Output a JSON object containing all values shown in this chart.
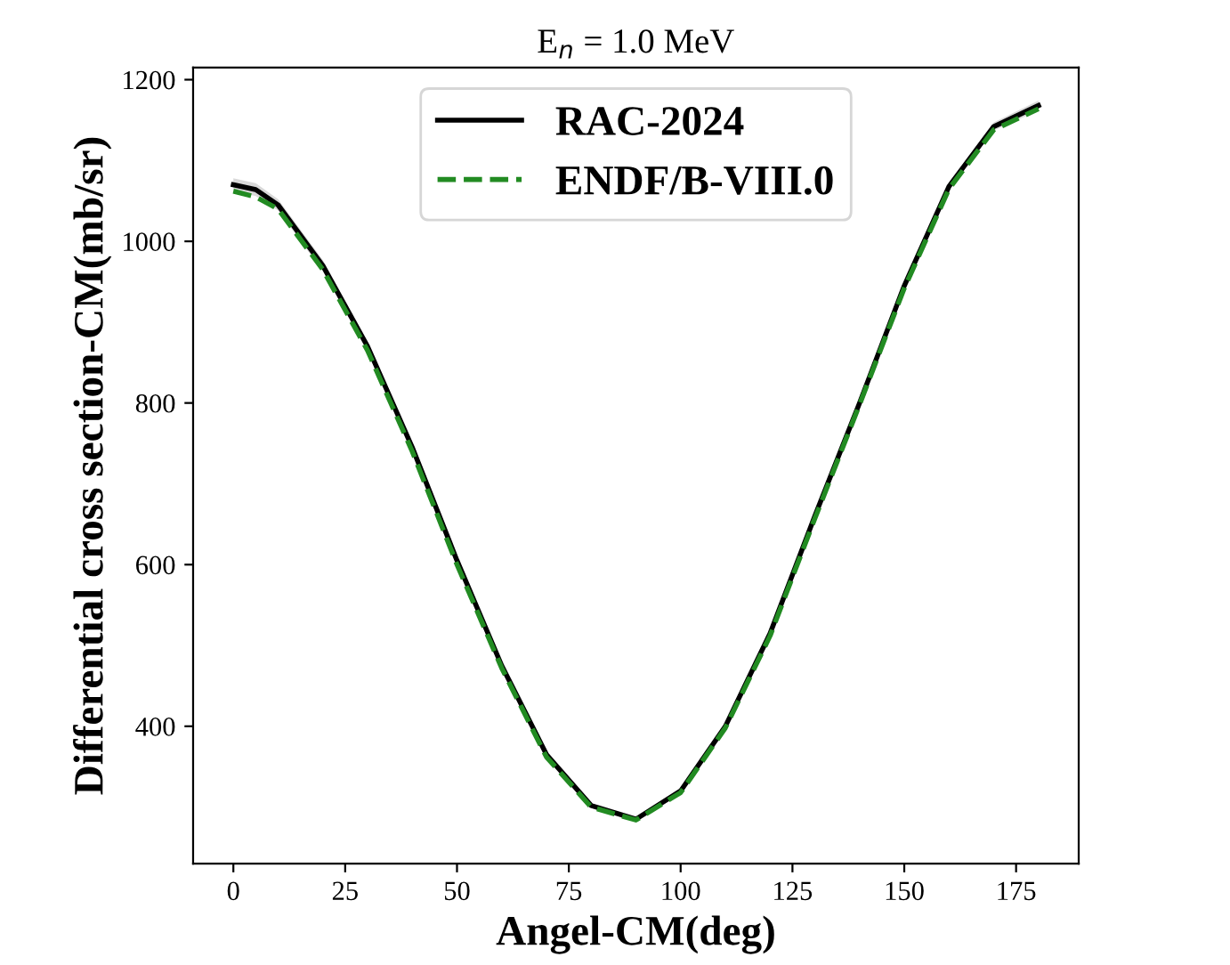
{
  "chart_data": {
    "type": "line",
    "title": "E$_{n}$ = 1.0 MeV",
    "xlabel": "Angel-CM(deg)",
    "ylabel": "Differential cross section-CM(mb/sr)",
    "x": [
      0,
      5,
      10,
      20,
      30,
      40,
      50,
      60,
      70,
      80,
      90,
      100,
      110,
      120,
      130,
      140,
      150,
      160,
      170,
      180
    ],
    "series": [
      {
        "name": "RAC-2024",
        "color": "#000000",
        "line_style": "solid",
        "values": [
          1070,
          1064,
          1045,
          970,
          870,
          745,
          605,
          475,
          365,
          302,
          285,
          320,
          400,
          515,
          660,
          800,
          945,
          1068,
          1142,
          1168
        ],
        "lower": [
          1062,
          1056,
          1038,
          963,
          864,
          740,
          601,
          472,
          363,
          300,
          283,
          318,
          398,
          512,
          657,
          797,
          941,
          1063,
          1137,
          1162
        ],
        "upper": [
          1078,
          1072,
          1052,
          977,
          876,
          750,
          609,
          478,
          367,
          304,
          287,
          322,
          402,
          518,
          663,
          803,
          949,
          1073,
          1147,
          1174
        ]
      },
      {
        "name": "ENDF/B-VIII.0",
        "color": "#228b22",
        "line_style": "dashed",
        "values": [
          1062,
          1055,
          1040,
          965,
          865,
          740,
          600,
          472,
          362,
          300,
          284,
          318,
          398,
          512,
          657,
          798,
          942,
          1065,
          1138,
          1164
        ]
      }
    ],
    "xlim": [
      -9,
      189
    ],
    "ylim": [
      230,
      1215
    ],
    "xticks": [
      0,
      25,
      50,
      75,
      100,
      125,
      150,
      175
    ],
    "yticks": [
      400,
      600,
      800,
      1000,
      1200
    ],
    "grid": false,
    "legend": "top",
    "marker": "none"
  }
}
